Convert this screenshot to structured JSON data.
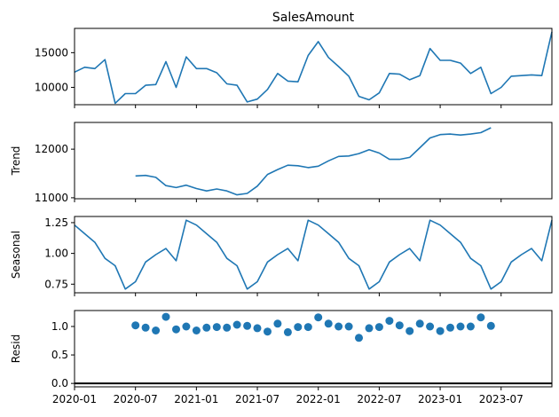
{
  "chart_data": [
    {
      "type": "line",
      "title": "SalesAmount",
      "ylabel": "",
      "ylim": [
        7500,
        18500
      ],
      "yticks": [
        10000,
        15000
      ],
      "ytick_labels": [
        "10000",
        "15000"
      ],
      "series": [
        {
          "color": "#1f77b4",
          "x_start": "2020-01",
          "values": [
            12200,
            12900,
            12700,
            14000,
            7700,
            9100,
            9100,
            10300,
            10400,
            13700,
            10000,
            14400,
            12700,
            12700,
            12100,
            10500,
            10300,
            7900,
            8300,
            9700,
            12000,
            10900,
            10800,
            14600,
            16600,
            14300,
            13000,
            11600,
            8700,
            8200,
            9200,
            12000,
            11900,
            11100,
            11700,
            15600,
            13900,
            13900,
            13500,
            12000,
            12900,
            9100,
            10000,
            11600,
            11700,
            11800,
            11700,
            18000
          ]
        }
      ]
    },
    {
      "type": "line",
      "title": "",
      "ylabel": "Trend",
      "ylim": [
        10980,
        12550
      ],
      "yticks": [
        11000,
        12000
      ],
      "ytick_labels": [
        "11000",
        "12000"
      ],
      "series": [
        {
          "color": "#1f77b4",
          "x_start": "2020-07",
          "values": [
            11450,
            11460,
            11420,
            11250,
            11210,
            11260,
            11190,
            11140,
            11180,
            11140,
            11060,
            11090,
            11240,
            11480,
            11580,
            11670,
            11660,
            11620,
            11650,
            11760,
            11850,
            11860,
            11910,
            11990,
            11920,
            11790,
            11790,
            11830,
            12030,
            12230,
            12300,
            12310,
            12290,
            12310,
            12340,
            12440
          ]
        }
      ]
    },
    {
      "type": "line",
      "title": "",
      "ylabel": "Seasonal",
      "ylim": [
        0.68,
        1.3
      ],
      "yticks": [
        0.75,
        1.0,
        1.25
      ],
      "ytick_labels": [
        "0.75",
        "1.00",
        "1.25"
      ],
      "series": [
        {
          "color": "#1f77b4",
          "x_start": "2020-01",
          "values": [
            1.23,
            1.16,
            1.09,
            0.96,
            0.9,
            0.71,
            0.77,
            0.93,
            0.99,
            1.04,
            0.94,
            1.27,
            1.23,
            1.16,
            1.09,
            0.96,
            0.9,
            0.71,
            0.77,
            0.93,
            0.99,
            1.04,
            0.94,
            1.27,
            1.23,
            1.16,
            1.09,
            0.96,
            0.9,
            0.71,
            0.77,
            0.93,
            0.99,
            1.04,
            0.94,
            1.27,
            1.23,
            1.16,
            1.09,
            0.96,
            0.9,
            0.71,
            0.77,
            0.93,
            0.99,
            1.04,
            0.94,
            1.27
          ]
        }
      ]
    },
    {
      "type": "scatter",
      "title": "",
      "ylabel": "Resid",
      "ylim": [
        -0.06,
        1.28
      ],
      "yticks": [
        0.0,
        0.5,
        1.0
      ],
      "ytick_labels": [
        "0.0",
        "0.5",
        "1.0"
      ],
      "baseline": 0,
      "series": [
        {
          "color": "#1f77b4",
          "x_start": "2020-07",
          "values": [
            1.02,
            0.98,
            0.93,
            1.17,
            0.95,
            1.0,
            0.93,
            0.98,
            0.99,
            0.98,
            1.03,
            1.01,
            0.97,
            0.91,
            1.05,
            0.9,
            0.99,
            0.99,
            1.16,
            1.05,
            1.0,
            1.0,
            0.8,
            0.97,
            0.99,
            1.1,
            1.02,
            0.92,
            1.05,
            1.0,
            0.92,
            0.98,
            1.0,
            1.0,
            1.16,
            1.01
          ]
        }
      ]
    }
  ],
  "x_axis": {
    "start": "2020-01",
    "end": "2023-12",
    "ticks": [
      "2020-01",
      "2020-07",
      "2021-01",
      "2021-07",
      "2022-01",
      "2022-07",
      "2023-01",
      "2023-07"
    ]
  }
}
